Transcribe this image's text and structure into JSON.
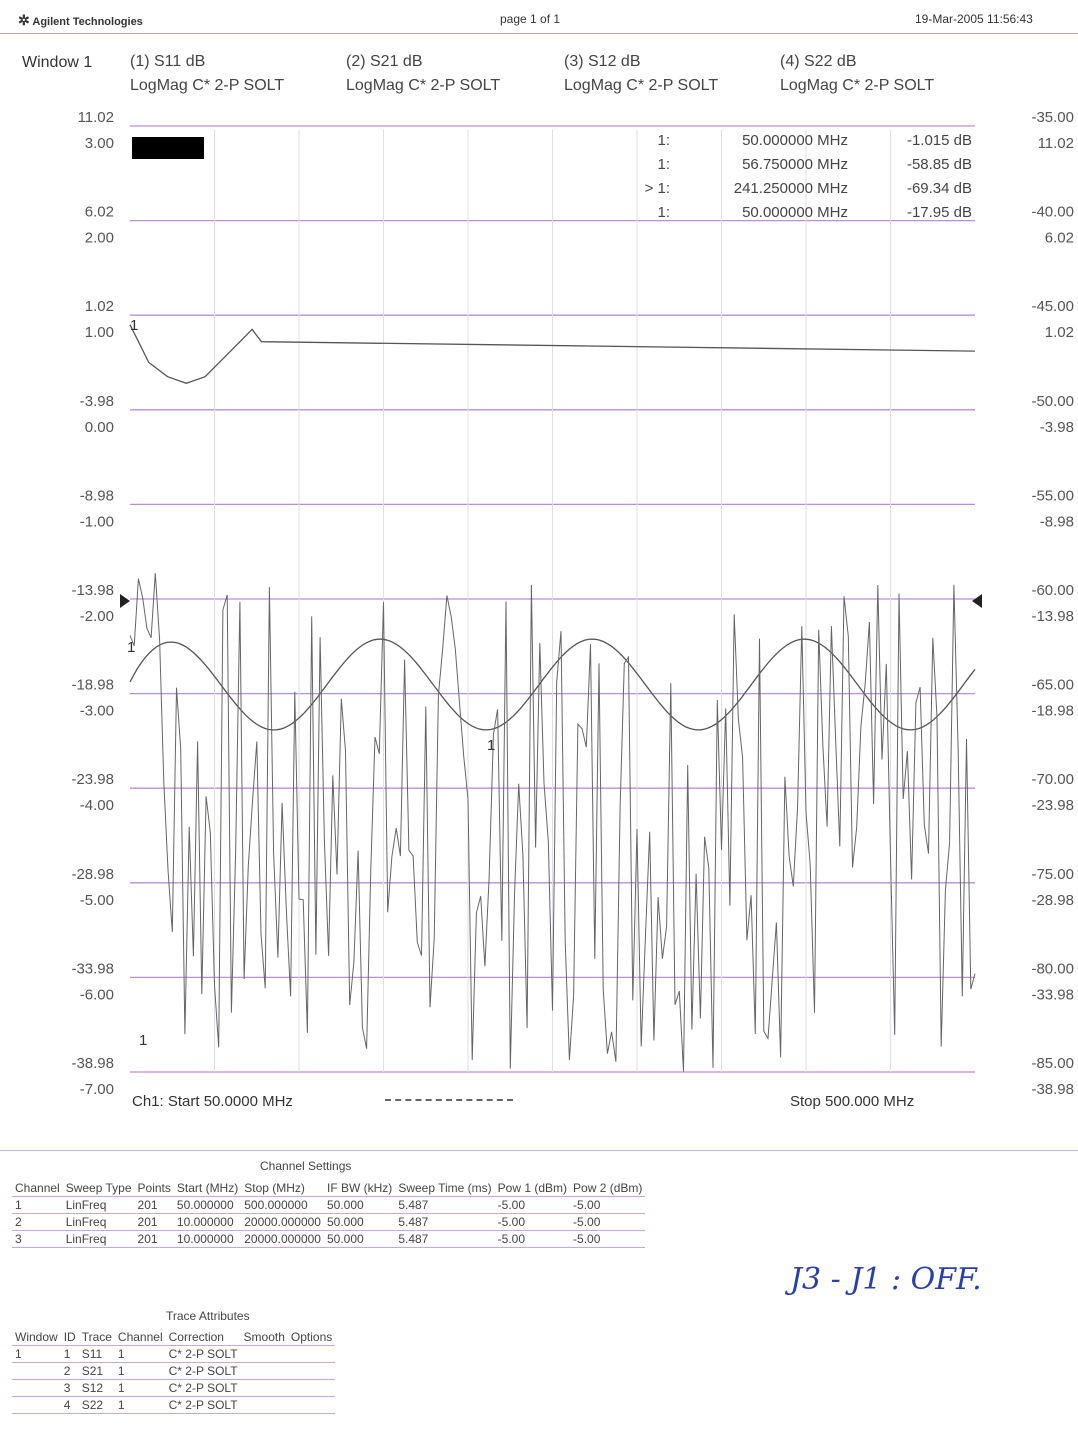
{
  "header": {
    "logo_text": "Agilent Technologies",
    "page": "page 1 of 1",
    "datetime": "19-Mar-2005  11:56:43"
  },
  "window_label": "Window 1",
  "traces": [
    {
      "name": "(1) S11 dB",
      "format": "LogMag C* 2-P SOLT"
    },
    {
      "name": "(2) S21 dB",
      "format": "LogMag C* 2-P SOLT"
    },
    {
      "name": "(3) S12 dB",
      "format": "LogMag C* 2-P SOLT"
    },
    {
      "name": "(4) S22 dB",
      "format": "LogMag C* 2-P SOLT"
    }
  ],
  "markers": [
    {
      "prefix": "1:",
      "freq": "50.000000 MHz",
      "value": "-1.015 dB"
    },
    {
      "prefix": "1:",
      "freq": "56.750000 MHz",
      "value": "-58.85 dB"
    },
    {
      "prefix": "> 1:",
      "freq": "241.250000 MHz",
      "value": "-69.34 dB"
    },
    {
      "prefix": "1:",
      "freq": "50.000000 MHz",
      "value": "-17.95 dB"
    }
  ],
  "chart_data": {
    "type": "line",
    "x_start_label": "Ch1: Start  50.0000 MHz",
    "x_stop_label": "Stop  500.000 MHz",
    "xlim_mhz": [
      50,
      500
    ],
    "left_scale_a": [
      "11.02",
      "6.02",
      "1.02",
      "-3.98",
      "-8.98",
      "-13.98",
      "-18.98",
      "-23.98",
      "-28.98",
      "-33.98",
      "-38.98"
    ],
    "left_scale_b": [
      "3.00",
      "2.00",
      "1.00",
      "0.00",
      "-1.00",
      "-2.00",
      "-3.00",
      "-4.00",
      "-5.00",
      "-6.00",
      "-7.00"
    ],
    "right_scale_a": [
      "-35.00",
      "-40.00",
      "-45.00",
      "-50.00",
      "-55.00",
      "-60.00",
      "-65.00",
      "-70.00",
      "-75.00",
      "-80.00",
      "-85.00"
    ],
    "right_scale_b": [
      "11.02",
      "6.02",
      "1.02",
      "-3.98",
      "-8.98",
      "-13.98",
      "-18.98",
      "-23.98",
      "-28.98",
      "-33.98",
      "-38.98"
    ],
    "series": [
      {
        "trace": "S21",
        "ylim": [
          -7,
          3
        ],
        "x": [
          50,
          60,
          70,
          80,
          90,
          100,
          110,
          115,
          120,
          500
        ],
        "y": [
          0.9,
          0.5,
          0.35,
          0.28,
          0.35,
          0.55,
          0.75,
          0.85,
          0.72,
          0.62
        ]
      },
      {
        "trace": "S11",
        "ylim": [
          -38.98,
          11.02
        ],
        "period_mhz": 113,
        "y_mid": -18.5,
        "amplitude": 2.4,
        "x": [
          50,
          70,
          90,
          110,
          130,
          150,
          170,
          200,
          230,
          260,
          290,
          320,
          350,
          380,
          410,
          440,
          470,
          500
        ],
        "y": [
          -18.9,
          -17.0,
          -16.3,
          -17.5,
          -19.6,
          -21.0,
          -20.0,
          -17.6,
          -16.3,
          -17.2,
          -19.8,
          -20.9,
          -19.2,
          -16.9,
          -16.5,
          -18.3,
          -20.6,
          -17.9
        ]
      },
      {
        "trace": "S12",
        "ylim": [
          -85,
          -35
        ],
        "noise": true,
        "x_range": [
          50,
          500
        ],
        "y_range": [
          -86,
          -57
        ]
      }
    ],
    "marker_labels": [
      "1",
      "1",
      "1",
      "1"
    ]
  },
  "channel_settings": {
    "title": "Channel Settings",
    "headers": [
      "Channel",
      "Sweep Type",
      "Points",
      "Start (MHz)",
      "Stop (MHz)",
      "IF BW (kHz)",
      "Sweep Time (ms)",
      "Pow 1 (dBm)",
      "Pow 2 (dBm)"
    ],
    "rows": [
      [
        "1",
        "LinFreq",
        "201",
        "50.000000",
        "500.000000",
        "50.000",
        "5.487",
        "-5.00",
        "-5.00"
      ],
      [
        "2",
        "LinFreq",
        "201",
        "10.000000",
        "20000.000000",
        "50.000",
        "5.487",
        "-5.00",
        "-5.00"
      ],
      [
        "3",
        "LinFreq",
        "201",
        "10.000000",
        "20000.000000",
        "50.000",
        "5.487",
        "-5.00",
        "-5.00"
      ]
    ]
  },
  "trace_attributes": {
    "title": "Trace Attributes",
    "headers": [
      "Window",
      "ID",
      "Trace",
      "Channel",
      "Correction",
      "Smooth",
      "Options"
    ],
    "rows": [
      [
        "1",
        "1",
        "S11",
        "1",
        "C* 2-P SOLT",
        "",
        ""
      ],
      [
        "",
        "2",
        "S21",
        "1",
        "C* 2-P SOLT",
        "",
        ""
      ],
      [
        "",
        "3",
        "S12",
        "1",
        "C* 2-P SOLT",
        "",
        ""
      ],
      [
        "",
        "4",
        "S22",
        "1",
        "C* 2-P SOLT",
        "",
        ""
      ]
    ]
  },
  "handwritten_note": "J3 - J1 : OFF."
}
